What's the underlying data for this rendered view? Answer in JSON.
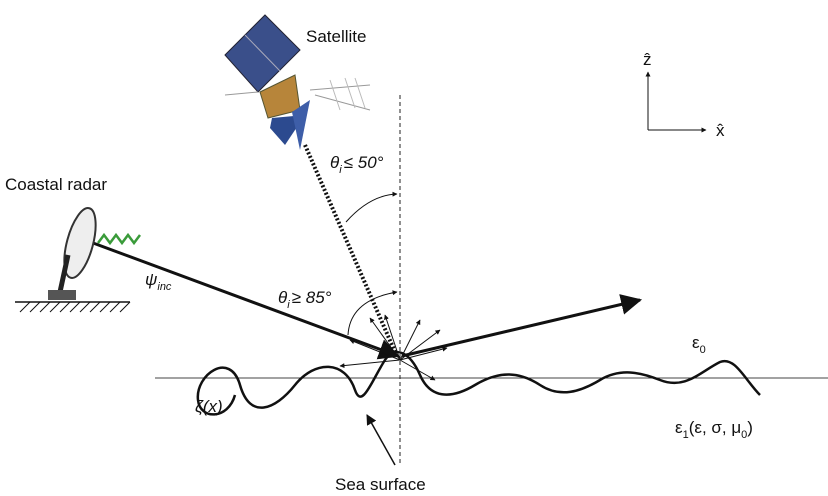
{
  "satellite": {
    "label": "Satellite"
  },
  "radar": {
    "label": "Coastal radar"
  },
  "angles": [
    {
      "symbol": "θ",
      "sub": "i",
      "relation": "≤ 50°"
    },
    {
      "symbol": "θ",
      "sub": "i",
      "relation": "≥ 85°"
    }
  ],
  "incidence": {
    "symbol": "ψ",
    "sub": "inc"
  },
  "media": {
    "upper": {
      "symbol": "ε",
      "sub": "0"
    },
    "lower": {
      "symbol": "ε",
      "sub": "1",
      "args": "(ε, σ, μ",
      "args_sub": "0",
      "close": ")"
    }
  },
  "surface": {
    "symbol": "ζ(x)",
    "label": "Sea surface"
  },
  "axes": {
    "z": "ẑ",
    "x": "x̂"
  }
}
